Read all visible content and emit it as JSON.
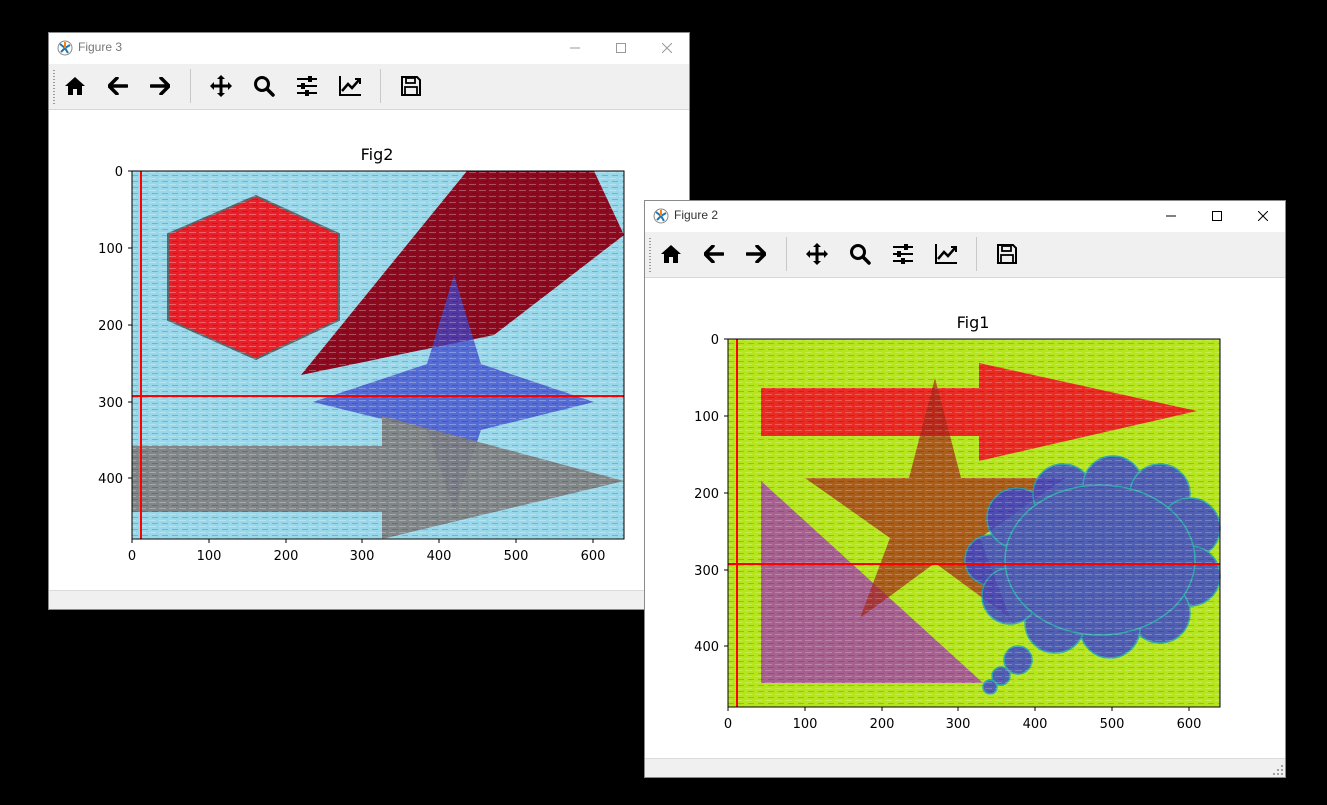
{
  "windows": [
    {
      "id": "fig3",
      "title": "Figure 3",
      "axes_title": "Fig2",
      "background_color": "#99d8ea",
      "x_ticks": [
        "0",
        "100",
        "200",
        "300",
        "400",
        "500",
        "600"
      ],
      "y_ticks": [
        "0",
        "100",
        "200",
        "300",
        "400"
      ],
      "crosshair": {
        "x": 12,
        "y": 293,
        "color": "#ff0000"
      },
      "shapes": [
        {
          "kind": "hexagon",
          "color": "#e8202a"
        },
        {
          "kind": "parallelogram",
          "color": "#8b0a1f"
        },
        {
          "kind": "four-point-star",
          "color": "#3f48cc"
        },
        {
          "kind": "arrow",
          "color": "#7f7f7f"
        }
      ]
    },
    {
      "id": "fig2",
      "title": "Figure 2",
      "axes_title": "Fig1",
      "background_color": "#b5e61d",
      "x_ticks": [
        "0",
        "100",
        "200",
        "300",
        "400",
        "500",
        "600"
      ],
      "y_ticks": [
        "0",
        "100",
        "200",
        "300",
        "400"
      ],
      "crosshair": {
        "x": 12,
        "y": 293,
        "color": "#ff0000"
      },
      "shapes": [
        {
          "kind": "arrow",
          "color": "#ed1c24"
        },
        {
          "kind": "star",
          "color": "#a52a1a"
        },
        {
          "kind": "right-triangle",
          "color": "#a349a4"
        },
        {
          "kind": "thought-cloud",
          "color": "#3f48cc"
        }
      ]
    }
  ],
  "toolbar_icons": [
    "home-icon",
    "back-arrow-icon",
    "forward-arrow-icon",
    "pan-icon",
    "zoom-icon",
    "configure-subplots-icon",
    "edit-axis-icon",
    "save-icon"
  ],
  "window_controls": [
    "minimize-icon",
    "maximize-icon",
    "close-icon"
  ]
}
